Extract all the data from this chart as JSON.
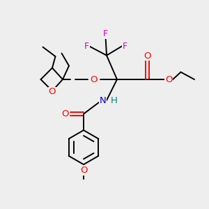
{
  "bg_color": "#eeeeee",
  "bond_color": "#000000",
  "atom_colors": {
    "O": "#ff0000",
    "N": "#0000cc",
    "F": "#cc00cc",
    "H": "#008080",
    "C": "#000000"
  },
  "figsize": [
    3.0,
    3.0
  ],
  "dpi": 100,
  "lw": 1.4,
  "fs": 8.5
}
